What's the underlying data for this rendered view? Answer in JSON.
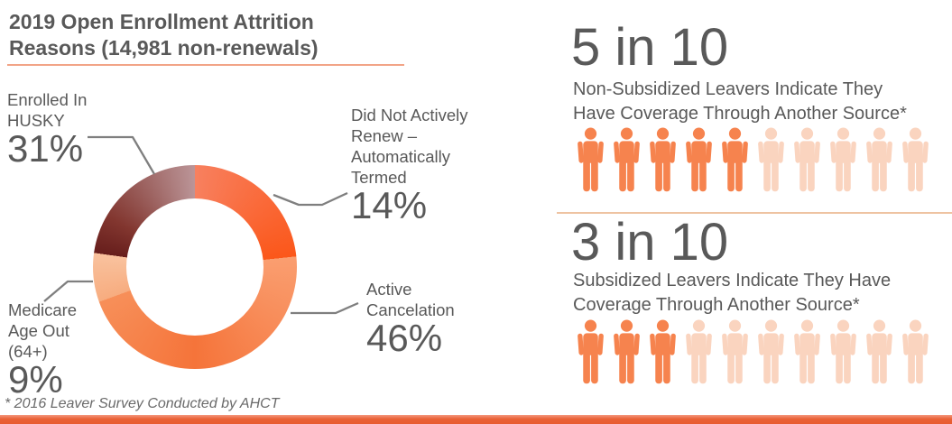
{
  "title": {
    "line1": "2019 Open Enrollment Attrition",
    "line2": "Reasons (14,981 non-renewals)"
  },
  "footnote": "* 2016 Leaver Survey Conducted by AHCT",
  "colors": {
    "text_gray": "#595959",
    "leader_line": "#7f7f7f",
    "title_underline": "#f2a487",
    "section_divider": "#eec3a2",
    "bottom_bar": "#e85c30",
    "icon_active": "#f6834e",
    "icon_inactive": "#fad4bf"
  },
  "chart_data": {
    "type": "pie",
    "subtype": "donut",
    "title": "2019 Open Enrollment Attrition Reasons",
    "total_label": "14,981 non-renewals",
    "unit": "percent",
    "hole_ratio": 0.67,
    "segments": [
      {
        "label": "Did Not Actively Renew – Automatically Termed",
        "value": 14,
        "arc": {
          "start_deg": 0,
          "end_deg": 84,
          "stops": [
            {
              "at": 0,
              "color": "#f8805f"
            },
            {
              "at": 84,
              "color": "#fb571a"
            }
          ]
        }
      },
      {
        "label": "Active Cancelation",
        "value": 46,
        "arc": {
          "start_deg": 84,
          "end_deg": 250,
          "stops": [
            {
              "at": 84,
              "color": "#fa9e70"
            },
            {
              "at": 180,
              "color": "#f5743a"
            },
            {
              "at": 250,
              "color": "#f78f59"
            }
          ]
        }
      },
      {
        "label": "Medicare Age Out (64+)",
        "value": 9,
        "arc": {
          "start_deg": 250,
          "end_deg": 278,
          "stops": [
            {
              "at": 250,
              "color": "#f7ac7f"
            },
            {
              "at": 278,
              "color": "#f9c29e"
            }
          ]
        }
      },
      {
        "label": "Enrolled In HUSKY",
        "value": 31,
        "arc": {
          "start_deg": 278,
          "end_deg": 360,
          "stops": [
            {
              "at": 278,
              "color": "#671e1c"
            },
            {
              "at": 300,
              "color": "#82362f"
            },
            {
              "at": 360,
              "color": "#bb9598"
            }
          ]
        }
      }
    ]
  },
  "callouts": {
    "husky": {
      "lines": [
        "Enrolled In",
        "HUSKY"
      ],
      "pct": "31%"
    },
    "didnot": {
      "lines": [
        "Did Not Actively",
        "Renew –",
        "Automatically",
        "Termed"
      ],
      "pct": "14%"
    },
    "active": {
      "lines": [
        "Active",
        "Cancelation"
      ],
      "pct": "46%"
    },
    "medicare": {
      "lines": [
        "Medicare",
        "Age Out",
        "(64+)"
      ],
      "pct": "9%"
    }
  },
  "stats": [
    {
      "headline": "5 in 10",
      "desc": [
        "Non-Subsidized Leavers Indicate They",
        "Have Coverage Through Another Source*"
      ],
      "filled": 5,
      "total": 10
    },
    {
      "headline": "3 in 10",
      "desc": [
        "Subsidized Leavers Indicate They Have",
        "Coverage Through Another Source*"
      ],
      "filled": 3,
      "total": 10
    }
  ]
}
